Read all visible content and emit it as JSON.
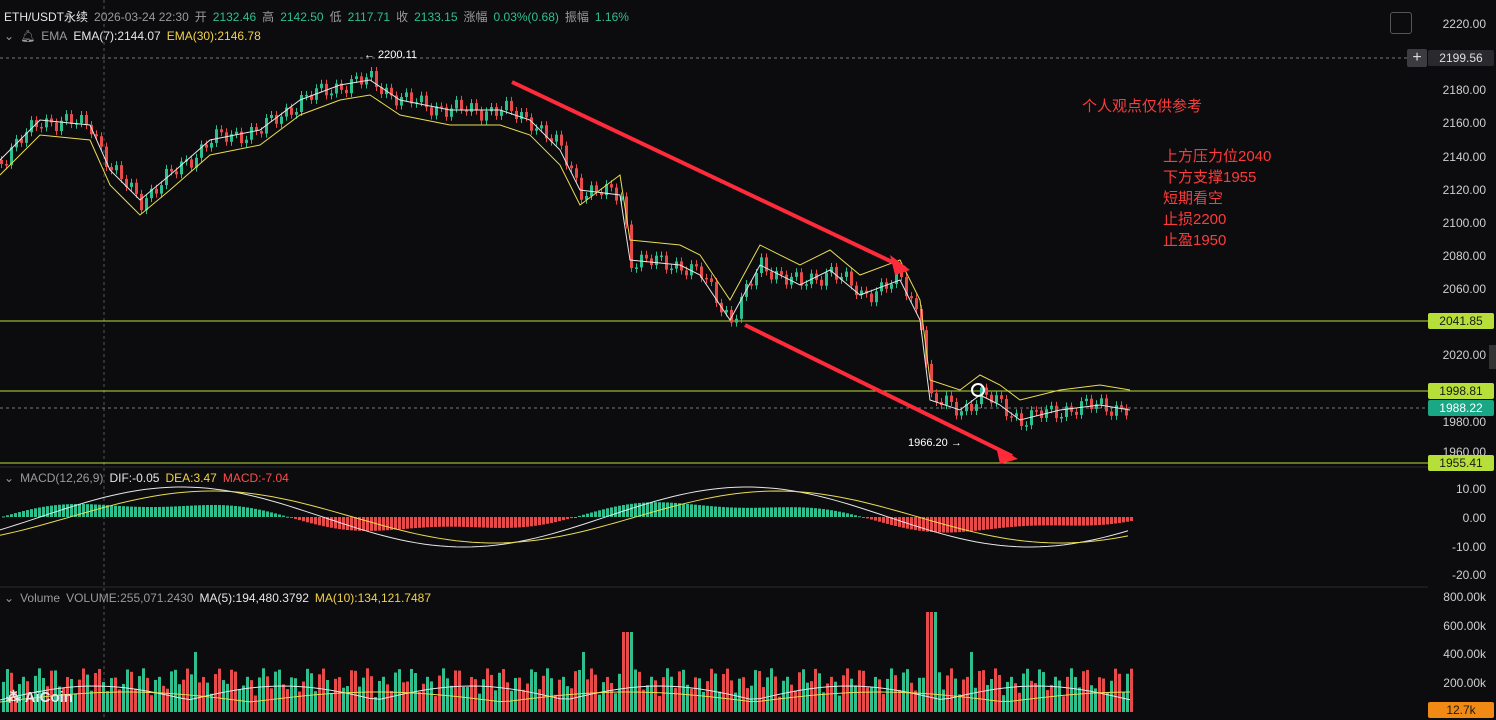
{
  "header": {
    "symbol": "ETH/USDT永续",
    "datetime": "2026-03-24 22:30",
    "open_label": "开",
    "open": "2132.46",
    "high_label": "高",
    "high": "2142.50",
    "low_label": "低",
    "low": "2117.71",
    "close_label": "收",
    "close": "2133.15",
    "change_label": "涨幅",
    "change": "0.03%(0.68)",
    "amp_label": "振幅",
    "amp": "1.16%"
  },
  "ema": {
    "name": "EMA",
    "ema7": "EMA(7):2144.07",
    "ema30": "EMA(30):2146.78"
  },
  "macd": {
    "name": "MACD(12,26,9)",
    "dif": "DIF:-0.05",
    "dea": "DEA:3.47",
    "macd": "MACD:-7.04"
  },
  "volume": {
    "name": "Volume",
    "vol": "VOLUME:255,071.2430",
    "ma5": "MA(5):194,480.3792",
    "ma10": "MA(10):134,121.7487"
  },
  "price_axis": [
    "2220.00",
    "2180.00",
    "2160.00",
    "2140.00",
    "2120.00",
    "2100.00",
    "2080.00",
    "2060.00",
    "2020.00",
    "1980.00",
    "1960.00"
  ],
  "macd_axis": [
    "10.00",
    "0.00",
    "-10.00",
    "-20.00"
  ],
  "volume_axis": [
    "800.00k",
    "600.00k",
    "400.00k",
    "200.00k"
  ],
  "tags": {
    "crosshair_price": "2199.56",
    "resistance": "2041.85",
    "level_mid": "1998.81",
    "last_price": "1988.22",
    "support": "1955.41",
    "volume_last": "12.7k"
  },
  "annotations": {
    "high_marker": "← 2200.11",
    "low_marker": "1966.20 →"
  },
  "notes": {
    "disclaimer": "个人观点仅供参考",
    "lines": [
      "上方压力位2040",
      "下方支撑1955",
      "短期看空",
      "止损2200",
      "止盈1950"
    ]
  },
  "logo": "AiCoin",
  "colors": {
    "up": "#2fbf8f",
    "down": "#e84a4a",
    "ema7": "#e6e6e6",
    "ema30": "#e8dc52",
    "level_line": "#b7df3a",
    "arrow": "#ff2a3a"
  }
}
